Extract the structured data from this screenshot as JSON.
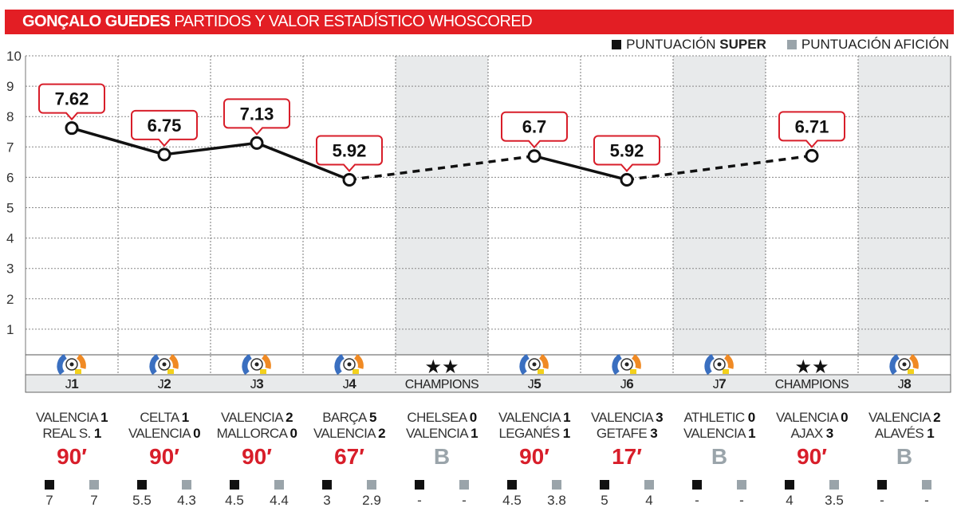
{
  "title": {
    "bold": "GONÇALO GUEDES",
    "rest": "PARTIDOS Y VALOR ESTADÍSTICO WHOSCORED"
  },
  "legend": {
    "super_prefix": "PUNTUACIÓN",
    "super_bold": "SUPER",
    "aficion": "PUNTUACIÓN AFICIÓN"
  },
  "colors": {
    "red": "#e31e24",
    "super": "#111111",
    "aficion": "#9aa4aa",
    "shade": "#e8eaeb"
  },
  "chart_data": {
    "type": "line",
    "ylim": [
      0,
      10
    ],
    "yticks": [
      "1",
      "2",
      "3",
      "4",
      "5",
      "6",
      "7",
      "8",
      "9",
      "10"
    ],
    "categories": [
      "J",
      "J",
      "J",
      "J",
      "CHAMPIONS",
      "J",
      "J",
      "J",
      "CHAMPIONS",
      "J"
    ],
    "cat_nums": [
      "1",
      "2",
      "3",
      "4",
      "",
      "5",
      "6",
      "7",
      "",
      "8"
    ],
    "competition": [
      "liga",
      "liga",
      "liga",
      "liga",
      "champions",
      "liga",
      "liga",
      "liga",
      "champions",
      "liga"
    ],
    "played": [
      true,
      true,
      true,
      true,
      false,
      true,
      true,
      false,
      true,
      false
    ],
    "values": [
      7.62,
      6.75,
      7.13,
      5.92,
      null,
      6.7,
      5.92,
      null,
      6.71,
      null
    ],
    "labels": [
      "7.62",
      "6.75",
      "7.13",
      "5.92",
      "",
      "6.7",
      "5.92",
      "",
      "6.71",
      ""
    ]
  },
  "matches": [
    {
      "home": "VALENCIA",
      "hs": "1",
      "away": "REAL S.",
      "as": "1",
      "mins": "90′",
      "super": "7",
      "aficion": "7"
    },
    {
      "home": "CELTA",
      "hs": "1",
      "away": "VALENCIA",
      "as": "0",
      "mins": "90′",
      "super": "5.5",
      "aficion": "4.3"
    },
    {
      "home": "VALENCIA",
      "hs": "2",
      "away": "MALLORCA",
      "as": "0",
      "mins": "90′",
      "super": "4.5",
      "aficion": "4.4"
    },
    {
      "home": "BARÇA",
      "hs": "5",
      "away": "VALENCIA",
      "as": "2",
      "mins": "67′",
      "super": "3",
      "aficion": "2.9"
    },
    {
      "home": "CHELSEA",
      "hs": "0",
      "away": "VALENCIA",
      "as": "1",
      "mins": "B",
      "super": "-",
      "aficion": "-"
    },
    {
      "home": "VALENCIA",
      "hs": "1",
      "away": "LEGANÉS",
      "as": "1",
      "mins": "90′",
      "super": "4.5",
      "aficion": "3.8"
    },
    {
      "home": "VALENCIA",
      "hs": "3",
      "away": "GETAFE",
      "as": "3",
      "mins": "17′",
      "super": "5",
      "aficion": "4"
    },
    {
      "home": "ATHLETIC",
      "hs": "0",
      "away": "VALENCIA",
      "as": "1",
      "mins": "B",
      "super": "-",
      "aficion": "-"
    },
    {
      "home": "VALENCIA",
      "hs": "0",
      "away": "AJAX",
      "as": "3",
      "mins": "90′",
      "super": "4",
      "aficion": "3.5"
    },
    {
      "home": "VALENCIA",
      "hs": "2",
      "away": "ALAVÉS",
      "as": "1",
      "mins": "B",
      "super": "-",
      "aficion": "-"
    }
  ]
}
